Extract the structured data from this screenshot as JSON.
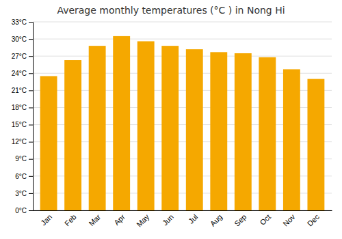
{
  "chart_data": {
    "type": "bar",
    "title": "Average monthly temperatures (°C ) in Nong Hi",
    "categories": [
      "Jan",
      "Feb",
      "Mar",
      "Apr",
      "May",
      "Jun",
      "Jul",
      "Aug",
      "Sep",
      "Oct",
      "Nov",
      "Dec"
    ],
    "values": [
      23.5,
      26.3,
      28.8,
      30.5,
      29.6,
      28.8,
      28.2,
      27.7,
      27.5,
      26.8,
      24.7,
      23.0
    ],
    "color": "#F5A800",
    "ylim": [
      0,
      33
    ],
    "yticks": [
      {
        "value": 0,
        "label": "0°C"
      },
      {
        "value": 3,
        "label": "3°C"
      },
      {
        "value": 6,
        "label": "6°C"
      },
      {
        "value": 9,
        "label": "9°C"
      },
      {
        "value": 12,
        "label": "12°C"
      },
      {
        "value": 15,
        "label": "15°C"
      },
      {
        "value": 18,
        "label": "18°C"
      },
      {
        "value": 21,
        "label": "21°C"
      },
      {
        "value": 24,
        "label": "24°C"
      },
      {
        "value": 27,
        "label": "27°C"
      },
      {
        "value": 30,
        "label": "30°C"
      },
      {
        "value": 33,
        "label": "33°C"
      }
    ],
    "grid": true
  }
}
